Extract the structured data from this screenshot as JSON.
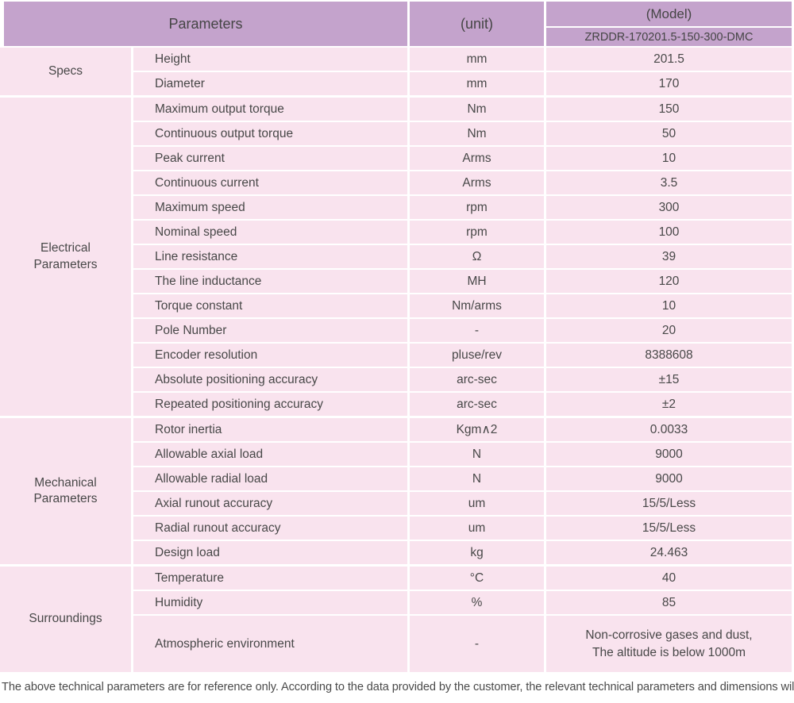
{
  "table": {
    "header": {
      "parameters": "Parameters",
      "unit": "(unit)",
      "model": "(Model)",
      "model_number": "ZRDDR-170201.5-150-300-DMC"
    },
    "sections": [
      {
        "category": "Specs",
        "rows": [
          {
            "parameter": "Height",
            "unit": "mm",
            "value": "201.5"
          },
          {
            "parameter": "Diameter",
            "unit": "mm",
            "value": "170"
          }
        ]
      },
      {
        "category": "Electrical Parameters",
        "rows": [
          {
            "parameter": "Maximum output torque",
            "unit": "Nm",
            "value": "150"
          },
          {
            "parameter": "Continuous output torque",
            "unit": "Nm",
            "value": "50"
          },
          {
            "parameter": "Peak current",
            "unit": "Arms",
            "value": "10"
          },
          {
            "parameter": "Continuous current",
            "unit": "Arms",
            "value": "3.5"
          },
          {
            "parameter": "Maximum speed",
            "unit": "rpm",
            "value": "300"
          },
          {
            "parameter": "Nominal speed",
            "unit": "rpm",
            "value": "100"
          },
          {
            "parameter": "Line resistance",
            "unit": "Ω",
            "value": "39"
          },
          {
            "parameter": "The line inductance",
            "unit": "MH",
            "value": "120"
          },
          {
            "parameter": "Torque constant",
            "unit": "Nm/arms",
            "value": "10"
          },
          {
            "parameter": "Pole Number",
            "unit": "-",
            "value": "20"
          },
          {
            "parameter": "Encoder resolution",
            "unit": "pluse/rev",
            "value": "8388608"
          },
          {
            "parameter": "Absolute positioning accuracy",
            "unit": "arc-sec",
            "value": "±15"
          },
          {
            "parameter": "Repeated positioning accuracy",
            "unit": "arc-sec",
            "value": "±2"
          }
        ]
      },
      {
        "category": "Mechanical Parameters",
        "rows": [
          {
            "parameter": "Rotor inertia",
            "unit": "Kgm∧2",
            "value": "0.0033"
          },
          {
            "parameter": "Allowable axial load",
            "unit": "N",
            "value": "9000"
          },
          {
            "parameter": "Allowable radial load",
            "unit": "N",
            "value": "9000"
          },
          {
            "parameter": "Axial runout accuracy",
            "unit": "um",
            "value": "15/5/Less"
          },
          {
            "parameter": "Radial runout accuracy",
            "unit": "um",
            "value": "15/5/Less"
          },
          {
            "parameter": "Design load",
            "unit": "kg",
            "value": "24.463"
          }
        ]
      },
      {
        "category": "Surroundings",
        "rows": [
          {
            "parameter": "Temperature",
            "unit": "°C",
            "value": "40"
          },
          {
            "parameter": "Humidity",
            "unit": "%",
            "value": "85"
          },
          {
            "parameter": "Atmospheric environment",
            "unit": "-",
            "value_lines": [
              "Non-corrosive gases and dust,",
              "The altitude is below 1000m"
            ]
          }
        ]
      }
    ]
  },
  "footer": {
    "note": "The above technical parameters are for reference only. According to the data provided by the customer, the relevant technical parameters and dimensions will be issued."
  },
  "colors": {
    "header_purple": "#c4a3cc",
    "row_pink": "#f9e3ee",
    "gap_white": "#ffffff",
    "text": "#484848"
  }
}
